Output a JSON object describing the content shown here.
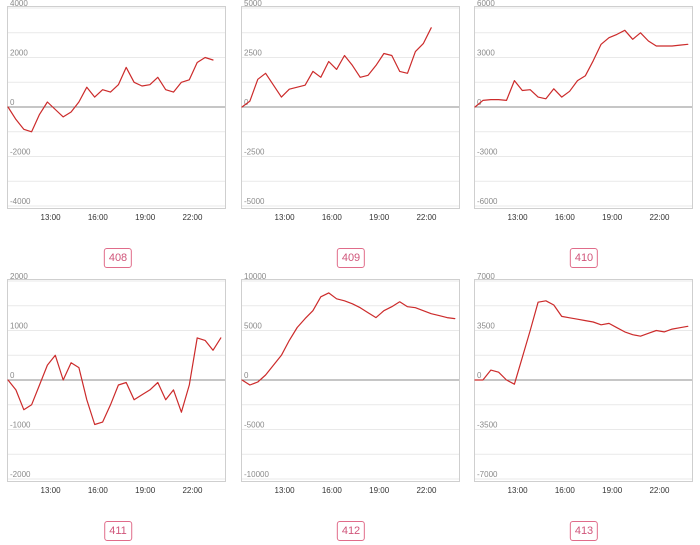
{
  "colors": {
    "line": "#cc2b2b",
    "badge": "#d0557a"
  },
  "chart_data": [
    {
      "type": "line",
      "label": "408",
      "x_ticks": [
        "13:00",
        "16:00",
        "19:00",
        "22:00"
      ],
      "y_ticks": [
        "4000",
        "2000",
        "0",
        "-2000",
        "-4000"
      ],
      "ylim": [
        -4000,
        4000
      ],
      "xlim": [
        10.3,
        24.0
      ],
      "series": [
        {
          "x": [
            10.3,
            10.8,
            11.3,
            11.8,
            12.3,
            12.8,
            13.3,
            13.8,
            14.3,
            14.8,
            15.3,
            15.8,
            16.3,
            16.8,
            17.3,
            17.8,
            18.3,
            18.8,
            19.3,
            19.8,
            20.3,
            20.8,
            21.3,
            21.8,
            22.3,
            22.8,
            23.3
          ],
          "y": [
            0,
            -500,
            -900,
            -1000,
            -300,
            200,
            -100,
            -400,
            -200,
            200,
            800,
            400,
            700,
            600,
            900,
            1600,
            1000,
            850,
            900,
            1200,
            700,
            600,
            1000,
            1100,
            1800,
            2000,
            1900
          ]
        }
      ]
    },
    {
      "type": "line",
      "label": "409",
      "x_ticks": [
        "13:00",
        "16:00",
        "19:00",
        "22:00"
      ],
      "y_ticks": [
        "5000",
        "2500",
        "0",
        "-2500",
        "-5000"
      ],
      "ylim": [
        -5000,
        5000
      ],
      "xlim": [
        10.3,
        24.0
      ],
      "series": [
        {
          "x": [
            10.3,
            10.8,
            11.3,
            11.8,
            12.3,
            12.8,
            13.3,
            13.8,
            14.3,
            14.8,
            15.3,
            15.8,
            16.3,
            16.8,
            17.3,
            17.8,
            18.3,
            18.8,
            19.3,
            19.8,
            20.3,
            20.8,
            21.3,
            21.8,
            22.3
          ],
          "y": [
            0,
            300,
            1400,
            1700,
            1100,
            500,
            900,
            1000,
            1100,
            1800,
            1500,
            2300,
            1900,
            2600,
            2100,
            1500,
            1600,
            2100,
            2700,
            2600,
            1800,
            1700,
            2800,
            3200,
            4000
          ]
        }
      ]
    },
    {
      "type": "line",
      "label": "410",
      "x_ticks": [
        "13:00",
        "16:00",
        "19:00",
        "22:00"
      ],
      "y_ticks": [
        "6000",
        "3000",
        "0",
        "-3000",
        "-6000"
      ],
      "ylim": [
        -6000,
        6000
      ],
      "xlim": [
        10.3,
        24.0
      ],
      "series": [
        {
          "x": [
            10.3,
            10.8,
            11.3,
            11.8,
            12.3,
            12.8,
            13.3,
            13.8,
            14.3,
            14.8,
            15.3,
            15.8,
            16.3,
            16.8,
            17.3,
            17.8,
            18.3,
            18.8,
            19.3,
            19.8,
            20.3,
            20.8,
            21.3,
            21.8,
            22.3,
            22.8,
            23.3,
            23.8
          ],
          "y": [
            0,
            400,
            450,
            450,
            400,
            1600,
            1000,
            1050,
            600,
            500,
            1100,
            600,
            950,
            1600,
            1900,
            2800,
            3800,
            4200,
            4400,
            4650,
            4100,
            4500,
            4000,
            3700,
            3700,
            3700,
            3750,
            3800
          ]
        }
      ]
    },
    {
      "type": "line",
      "label": "411",
      "x_ticks": [
        "13:00",
        "16:00",
        "19:00",
        "22:00"
      ],
      "y_ticks": [
        "2000",
        "1000",
        "0",
        "-1000",
        "-2000"
      ],
      "ylim": [
        -2000,
        2000
      ],
      "xlim": [
        10.3,
        24.0
      ],
      "series": [
        {
          "x": [
            10.3,
            10.8,
            11.3,
            11.8,
            12.3,
            12.8,
            13.3,
            13.8,
            14.3,
            14.8,
            15.3,
            15.8,
            16.3,
            16.8,
            17.3,
            17.8,
            18.3,
            18.8,
            19.3,
            19.8,
            20.3,
            20.8,
            21.3,
            21.8,
            22.3,
            22.8,
            23.3,
            23.8
          ],
          "y": [
            0,
            -200,
            -600,
            -500,
            -100,
            300,
            500,
            0,
            350,
            250,
            -400,
            -900,
            -850,
            -500,
            -100,
            -50,
            -400,
            -300,
            -200,
            -50,
            -400,
            -200,
            -650,
            -100,
            850,
            800,
            600,
            850
          ]
        }
      ]
    },
    {
      "type": "line",
      "label": "412",
      "x_ticks": [
        "13:00",
        "16:00",
        "19:00",
        "22:00"
      ],
      "y_ticks": [
        "10000",
        "5000",
        "0",
        "-5000",
        "-10000"
      ],
      "ylim": [
        -10000,
        10000
      ],
      "xlim": [
        10.3,
        24.0
      ],
      "series": [
        {
          "x": [
            10.3,
            10.8,
            11.3,
            11.8,
            12.3,
            12.8,
            13.3,
            13.8,
            14.3,
            14.8,
            15.3,
            15.8,
            16.3,
            16.8,
            17.3,
            17.8,
            18.3,
            18.8,
            19.3,
            19.8,
            20.3,
            20.8,
            21.3,
            21.8,
            22.3,
            22.8,
            23.3,
            23.8
          ],
          "y": [
            0,
            -500,
            -200,
            500,
            1500,
            2500,
            4000,
            5300,
            6200,
            7000,
            8400,
            8800,
            8200,
            8000,
            7700,
            7300,
            6800,
            6300,
            7000,
            7400,
            7900,
            7400,
            7300,
            7000,
            6700,
            6500,
            6300,
            6200
          ]
        }
      ]
    },
    {
      "type": "line",
      "label": "413",
      "x_ticks": [
        "13:00",
        "16:00",
        "19:00",
        "22:00"
      ],
      "y_ticks": [
        "7000",
        "3500",
        "0",
        "-3500",
        "-7000"
      ],
      "ylim": [
        -7000,
        7000
      ],
      "xlim": [
        10.3,
        24.0
      ],
      "series": [
        {
          "x": [
            10.3,
            10.8,
            11.3,
            11.8,
            12.3,
            12.8,
            13.3,
            13.8,
            14.3,
            14.8,
            15.3,
            15.8,
            16.3,
            16.8,
            17.3,
            17.8,
            18.3,
            18.8,
            19.3,
            19.8,
            20.3,
            20.8,
            21.3,
            21.8,
            22.3,
            22.8,
            23.3,
            23.8
          ],
          "y": [
            0,
            0,
            700,
            550,
            0,
            -300,
            1600,
            3500,
            5500,
            5600,
            5300,
            4500,
            4400,
            4300,
            4200,
            4100,
            3900,
            4000,
            3700,
            3400,
            3200,
            3100,
            3300,
            3500,
            3400,
            3600,
            3700,
            3800
          ]
        }
      ]
    }
  ]
}
